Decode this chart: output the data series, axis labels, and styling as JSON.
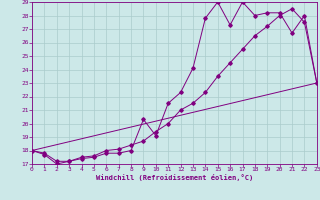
{
  "xlabel": "Windchill (Refroidissement éolien,°C)",
  "bg_color": "#cce8e8",
  "line_color": "#800080",
  "grid_color": "#aacccc",
  "spine_color": "#800080",
  "xlim": [
    0,
    23
  ],
  "ylim": [
    17,
    29
  ],
  "xticks": [
    0,
    1,
    2,
    3,
    4,
    5,
    6,
    7,
    8,
    9,
    10,
    11,
    12,
    13,
    14,
    15,
    16,
    17,
    18,
    19,
    20,
    21,
    22,
    23
  ],
  "yticks": [
    17,
    18,
    19,
    20,
    21,
    22,
    23,
    24,
    25,
    26,
    27,
    28,
    29
  ],
  "line1_x": [
    0,
    1,
    2,
    3,
    4,
    5,
    6,
    7,
    8,
    9,
    10,
    11,
    12,
    13,
    14,
    15,
    16,
    17,
    18,
    19,
    20,
    21,
    22,
    23
  ],
  "line1_y": [
    18.0,
    17.7,
    17.0,
    17.2,
    17.4,
    17.5,
    17.8,
    17.8,
    18.0,
    20.3,
    19.1,
    21.5,
    22.3,
    24.1,
    27.8,
    29.0,
    27.3,
    29.0,
    28.0,
    28.2,
    28.2,
    26.7,
    28.0,
    23.0
  ],
  "line2_x": [
    0,
    1,
    2,
    3,
    4,
    5,
    6,
    7,
    8,
    9,
    10,
    11,
    12,
    13,
    14,
    15,
    16,
    17,
    18,
    19,
    20,
    21,
    22,
    23
  ],
  "line2_y": [
    18.0,
    17.8,
    17.2,
    17.2,
    17.5,
    17.6,
    18.0,
    18.1,
    18.4,
    18.7,
    19.4,
    20.0,
    21.0,
    21.5,
    22.3,
    23.5,
    24.5,
    25.5,
    26.5,
    27.2,
    28.0,
    28.5,
    27.5,
    23.0
  ],
  "line3_x": [
    0,
    23
  ],
  "line3_y": [
    18.0,
    23.0
  ]
}
